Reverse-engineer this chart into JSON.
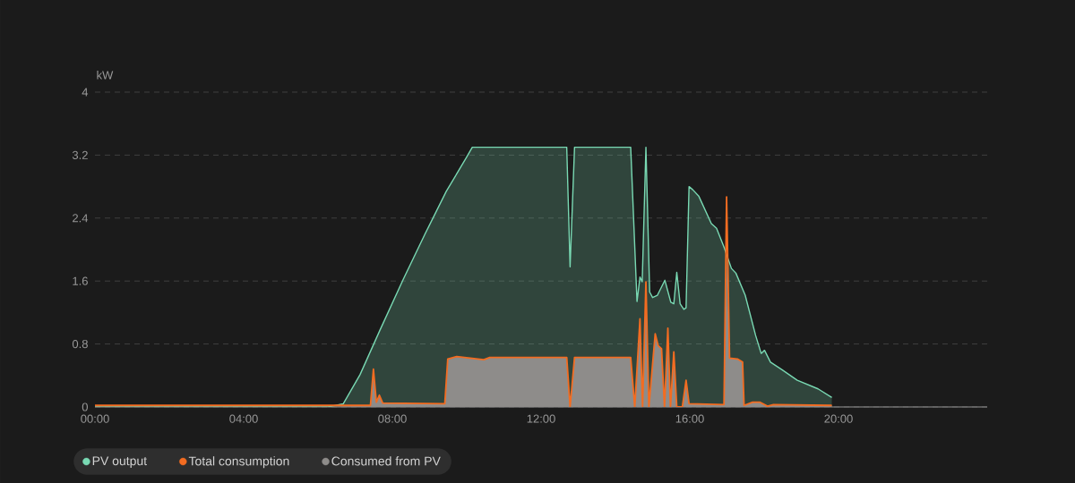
{
  "chart_data": {
    "type": "area",
    "ylabel": "kW",
    "xlim": [
      0,
      24
    ],
    "ylim": [
      0,
      4
    ],
    "xticks": [
      {
        "value": 0,
        "label": "00:00"
      },
      {
        "value": 4,
        "label": "04:00"
      },
      {
        "value": 8,
        "label": "08:00"
      },
      {
        "value": 12,
        "label": "12:00"
      },
      {
        "value": 16,
        "label": "16:00"
      },
      {
        "value": 20,
        "label": "20:00"
      }
    ],
    "yticks": [
      0,
      0.8,
      1.6,
      2.4,
      3.2,
      4
    ],
    "grid": "y",
    "legend": "bottom",
    "series": [
      {
        "name": "PV output",
        "color": "#79d9b3",
        "x": [
          0,
          6.27,
          6.68,
          7.13,
          7.66,
          8.29,
          8.87,
          9.45,
          9.98,
          10.15,
          12.69,
          12.78,
          12.9,
          14.41,
          14.58,
          14.66,
          14.72,
          14.82,
          14.92,
          15.0,
          15.13,
          15.33,
          15.49,
          15.57,
          15.65,
          15.74,
          15.84,
          15.9,
          15.98,
          16.08,
          16.24,
          16.58,
          16.72,
          16.92,
          17.12,
          17.24,
          17.49,
          17.77,
          17.92,
          18.01,
          18.17,
          18.49,
          18.89,
          19.45,
          19.82
        ],
        "values": [
          0,
          0,
          0.04,
          0.41,
          0.97,
          1.62,
          2.19,
          2.74,
          3.16,
          3.3,
          3.3,
          1.78,
          3.3,
          3.3,
          1.34,
          1.65,
          1.59,
          3.3,
          1.46,
          1.39,
          1.42,
          1.61,
          1.33,
          1.31,
          1.71,
          1.31,
          1.24,
          1.26,
          2.8,
          2.76,
          2.68,
          2.33,
          2.27,
          2.03,
          1.76,
          1.7,
          1.42,
          0.91,
          0.68,
          0.72,
          0.57,
          0.47,
          0.34,
          0.23,
          0.12
        ]
      },
      {
        "name": "Total consumption",
        "type": "line",
        "color": "#f36c21",
        "x": [
          0,
          7.41,
          7.49,
          7.57,
          7.65,
          7.74,
          9.41,
          9.49,
          9.73,
          10.46,
          10.62,
          12.69,
          12.78,
          12.9,
          14.41,
          14.52,
          14.66,
          14.73,
          14.82,
          14.9,
          15.07,
          15.15,
          15.24,
          15.32,
          15.41,
          15.48,
          15.57,
          15.65,
          15.8,
          15.9,
          15.98,
          16.92,
          16.99,
          17.07,
          17.28,
          17.42,
          17.46,
          17.69,
          17.89,
          18.09,
          18.25,
          19.82
        ],
        "values": [
          0.02,
          0.02,
          0.48,
          0.06,
          0.15,
          0.05,
          0.04,
          0.61,
          0.64,
          0.6,
          0.63,
          0.63,
          0,
          0.63,
          0.63,
          0,
          1.12,
          0,
          1.59,
          0,
          0.93,
          0.78,
          0.74,
          0,
          1.0,
          0,
          0.7,
          0,
          0,
          0.34,
          0.04,
          0.03,
          2.67,
          0.62,
          0.61,
          0.57,
          0.02,
          0.06,
          0.06,
          0.01,
          0.03,
          0.02
        ]
      },
      {
        "name": "Consumed from PV",
        "color": "#8e8c8a",
        "x": [
          6.27,
          7.41,
          7.49,
          7.57,
          7.65,
          7.74,
          9.41,
          9.49,
          9.73,
          10.46,
          10.62,
          12.69,
          12.78,
          12.9,
          14.41,
          14.52,
          14.66,
          14.73,
          14.82,
          14.9,
          15.07,
          15.15,
          15.24,
          15.32,
          15.41,
          15.48,
          15.57,
          15.65,
          15.8,
          15.9,
          15.98,
          16.92,
          16.99,
          17.07,
          17.28,
          17.42,
          17.46,
          17.69,
          17.89,
          18.09,
          18.25,
          19.82
        ],
        "values": [
          0,
          0.02,
          0.48,
          0.06,
          0.15,
          0.05,
          0.04,
          0.61,
          0.64,
          0.6,
          0.63,
          0.63,
          0,
          0.63,
          0.63,
          0,
          1.12,
          0,
          1.59,
          0,
          0.93,
          0.78,
          0.74,
          0,
          1.0,
          0,
          0.7,
          0,
          0,
          0.34,
          0.04,
          0.03,
          1.98,
          0.62,
          0.61,
          0.57,
          0.02,
          0.06,
          0.06,
          0.01,
          0.03,
          0.02
        ]
      }
    ]
  }
}
